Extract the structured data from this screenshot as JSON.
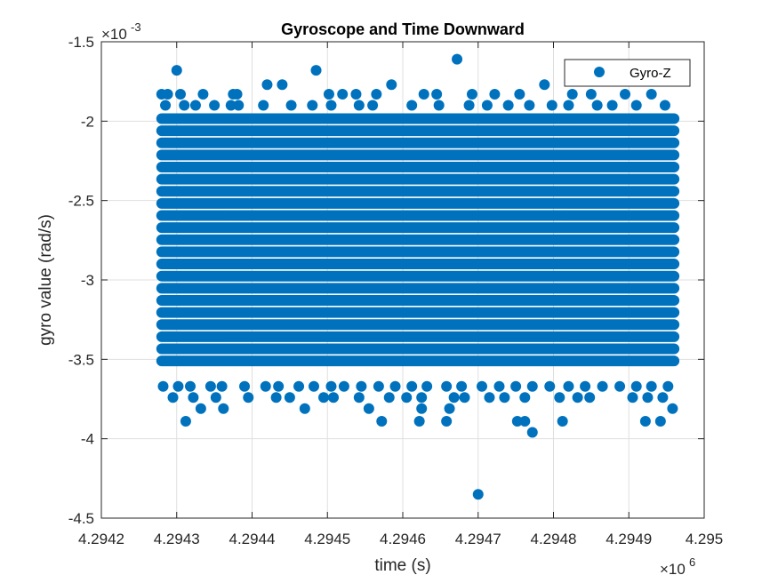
{
  "chart_data": {
    "type": "scatter",
    "title": "Gyroscope and Time Downward",
    "xlabel": "time (s)",
    "ylabel": "gyro value (rad/s)",
    "x_exponent_base": "×10",
    "x_exponent_power": "6",
    "y_exponent_base": "×10",
    "y_exponent_power": "-3",
    "xlim": [
      4.2942,
      4.295
    ],
    "ylim": [
      -4.5,
      -1.5
    ],
    "x_ticks": [
      4.2942,
      4.2943,
      4.2944,
      4.2945,
      4.2946,
      4.2947,
      4.2948,
      4.2949,
      4.295
    ],
    "x_tick_labels": [
      "4.2942",
      "4.2943",
      "4.2944",
      "4.2945",
      "4.2946",
      "4.2947",
      "4.2948",
      "4.2949",
      "4.295"
    ],
    "y_ticks": [
      -4.5,
      -4,
      -3.5,
      -3,
      -2.5,
      -2,
      -1.5
    ],
    "y_tick_labels": [
      "-4.5",
      "-4",
      "-3.5",
      "-3",
      "-2.5",
      "-2",
      "-1.5"
    ],
    "grid": true,
    "legend_position": "top-right",
    "marker_color": "#0072BD",
    "series": [
      {
        "name": "Gyro-Z",
        "x_range": [
          4.29428,
          4.29496
        ],
        "dense_band": [
          -3.51,
          -1.98
        ],
        "level_spacing": 0.0763,
        "sparse_points": [
          [
            4.2943,
            -1.68
          ],
          [
            4.294485,
            -1.68
          ],
          [
            4.294672,
            -1.61
          ],
          [
            4.294788,
            -1.77
          ],
          [
            4.294935,
            -1.72
          ],
          [
            4.29442,
            -1.77
          ],
          [
            4.29444,
            -1.77
          ],
          [
            4.294585,
            -1.77
          ],
          [
            4.29428,
            -1.83
          ],
          [
            4.294288,
            -1.83
          ],
          [
            4.294305,
            -1.83
          ],
          [
            4.294335,
            -1.83
          ],
          [
            4.294375,
            -1.83
          ],
          [
            4.29438,
            -1.83
          ],
          [
            4.294502,
            -1.83
          ],
          [
            4.29452,
            -1.83
          ],
          [
            4.294538,
            -1.83
          ],
          [
            4.294565,
            -1.83
          ],
          [
            4.294628,
            -1.83
          ],
          [
            4.294645,
            -1.83
          ],
          [
            4.294692,
            -1.83
          ],
          [
            4.294722,
            -1.83
          ],
          [
            4.294755,
            -1.83
          ],
          [
            4.294825,
            -1.83
          ],
          [
            4.29485,
            -1.83
          ],
          [
            4.294895,
            -1.83
          ],
          [
            4.29493,
            -1.83
          ],
          [
            4.294285,
            -1.9
          ],
          [
            4.29431,
            -1.9
          ],
          [
            4.294325,
            -1.9
          ],
          [
            4.29435,
            -1.9
          ],
          [
            4.294372,
            -1.9
          ],
          [
            4.294382,
            -1.9
          ],
          [
            4.294415,
            -1.9
          ],
          [
            4.294452,
            -1.9
          ],
          [
            4.29448,
            -1.9
          ],
          [
            4.294505,
            -1.9
          ],
          [
            4.294542,
            -1.9
          ],
          [
            4.29456,
            -1.9
          ],
          [
            4.294612,
            -1.9
          ],
          [
            4.294648,
            -1.9
          ],
          [
            4.294688,
            -1.9
          ],
          [
            4.294712,
            -1.9
          ],
          [
            4.29474,
            -1.9
          ],
          [
            4.294768,
            -1.9
          ],
          [
            4.294798,
            -1.9
          ],
          [
            4.29482,
            -1.9
          ],
          [
            4.294858,
            -1.9
          ],
          [
            4.294878,
            -1.9
          ],
          [
            4.29491,
            -1.9
          ],
          [
            4.294948,
            -1.9
          ],
          [
            4.294282,
            -3.67
          ],
          [
            4.294302,
            -3.67
          ],
          [
            4.294318,
            -3.67
          ],
          [
            4.294345,
            -3.67
          ],
          [
            4.29436,
            -3.67
          ],
          [
            4.29439,
            -3.67
          ],
          [
            4.294418,
            -3.67
          ],
          [
            4.294435,
            -3.67
          ],
          [
            4.294462,
            -3.67
          ],
          [
            4.294482,
            -3.67
          ],
          [
            4.294505,
            -3.67
          ],
          [
            4.294522,
            -3.67
          ],
          [
            4.294545,
            -3.67
          ],
          [
            4.294568,
            -3.67
          ],
          [
            4.29459,
            -3.67
          ],
          [
            4.294612,
            -3.67
          ],
          [
            4.294632,
            -3.67
          ],
          [
            4.294658,
            -3.67
          ],
          [
            4.294678,
            -3.67
          ],
          [
            4.294705,
            -3.67
          ],
          [
            4.294728,
            -3.67
          ],
          [
            4.29475,
            -3.67
          ],
          [
            4.294772,
            -3.67
          ],
          [
            4.294795,
            -3.67
          ],
          [
            4.29482,
            -3.67
          ],
          [
            4.294842,
            -3.67
          ],
          [
            4.294865,
            -3.67
          ],
          [
            4.294888,
            -3.67
          ],
          [
            4.29491,
            -3.67
          ],
          [
            4.29493,
            -3.67
          ],
          [
            4.294952,
            -3.67
          ],
          [
            4.294295,
            -3.74
          ],
          [
            4.294322,
            -3.74
          ],
          [
            4.294352,
            -3.74
          ],
          [
            4.294395,
            -3.74
          ],
          [
            4.294432,
            -3.74
          ],
          [
            4.29445,
            -3.74
          ],
          [
            4.294495,
            -3.74
          ],
          [
            4.294508,
            -3.74
          ],
          [
            4.294542,
            -3.74
          ],
          [
            4.294582,
            -3.74
          ],
          [
            4.294605,
            -3.74
          ],
          [
            4.294625,
            -3.74
          ],
          [
            4.294668,
            -3.74
          ],
          [
            4.294682,
            -3.74
          ],
          [
            4.294715,
            -3.74
          ],
          [
            4.294735,
            -3.74
          ],
          [
            4.294762,
            -3.74
          ],
          [
            4.294808,
            -3.74
          ],
          [
            4.294832,
            -3.74
          ],
          [
            4.294848,
            -3.74
          ],
          [
            4.294905,
            -3.74
          ],
          [
            4.294925,
            -3.74
          ],
          [
            4.294945,
            -3.74
          ],
          [
            4.294332,
            -3.81
          ],
          [
            4.294362,
            -3.81
          ],
          [
            4.29447,
            -3.81
          ],
          [
            4.294555,
            -3.81
          ],
          [
            4.294625,
            -3.81
          ],
          [
            4.294662,
            -3.81
          ],
          [
            4.294958,
            -3.81
          ],
          [
            4.294312,
            -3.89
          ],
          [
            4.294572,
            -3.89
          ],
          [
            4.294622,
            -3.89
          ],
          [
            4.294658,
            -3.89
          ],
          [
            4.294752,
            -3.89
          ],
          [
            4.294762,
            -3.89
          ],
          [
            4.294812,
            -3.89
          ],
          [
            4.294922,
            -3.89
          ],
          [
            4.294942,
            -3.89
          ],
          [
            4.294772,
            -3.96
          ],
          [
            4.2947,
            -4.35
          ]
        ]
      }
    ]
  }
}
